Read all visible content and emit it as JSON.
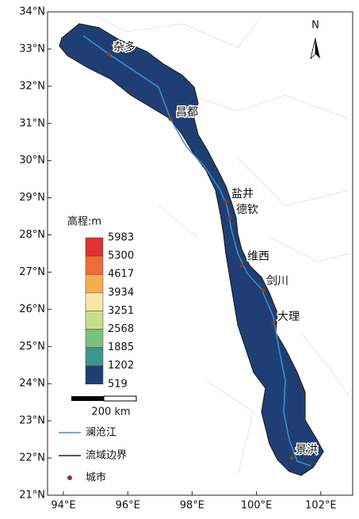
{
  "map": {
    "north": "N",
    "lat_ticks": [
      {
        "value": 34,
        "label": "34°N"
      },
      {
        "value": 33,
        "label": "33°N"
      },
      {
        "value": 32,
        "label": "32°N"
      },
      {
        "value": 31,
        "label": "31°N"
      },
      {
        "value": 30,
        "label": "30°N"
      },
      {
        "value": 29,
        "label": "29°N"
      },
      {
        "value": 28,
        "label": "28°N"
      },
      {
        "value": 27,
        "label": "27°N"
      },
      {
        "value": 26,
        "label": "26°N"
      },
      {
        "value": 25,
        "label": "25°N"
      },
      {
        "value": 24,
        "label": "24°N"
      },
      {
        "value": 23,
        "label": "23°N"
      },
      {
        "value": 22,
        "label": "22°N"
      },
      {
        "value": 21,
        "label": "21°N"
      }
    ],
    "lon_ticks": [
      {
        "value": 94,
        "label": "94°E"
      },
      {
        "value": 96,
        "label": "96°E"
      },
      {
        "value": 98,
        "label": "98°E"
      },
      {
        "value": 100,
        "label": "100°E"
      },
      {
        "value": 102,
        "label": "102°E"
      }
    ],
    "cities": [
      "杂多",
      "昌都",
      "盐井",
      "德钦",
      "维西",
      "剑川",
      "大理",
      "景洪"
    ],
    "elevation_legend": {
      "title": "高程:m",
      "values": [
        5983,
        5300,
        4617,
        3934,
        3251,
        2568,
        1885,
        1202,
        519
      ],
      "colors": [
        "#e2322e",
        "#f06c35",
        "#f8ac4c",
        "#f7e6a6",
        "#c6df8a",
        "#78c27a",
        "#3f9688",
        "#1f3f74"
      ]
    },
    "scale_bar": "200 km",
    "legend": {
      "river": "澜沧江",
      "boundary": "流域边界",
      "city": "城市"
    }
  }
}
